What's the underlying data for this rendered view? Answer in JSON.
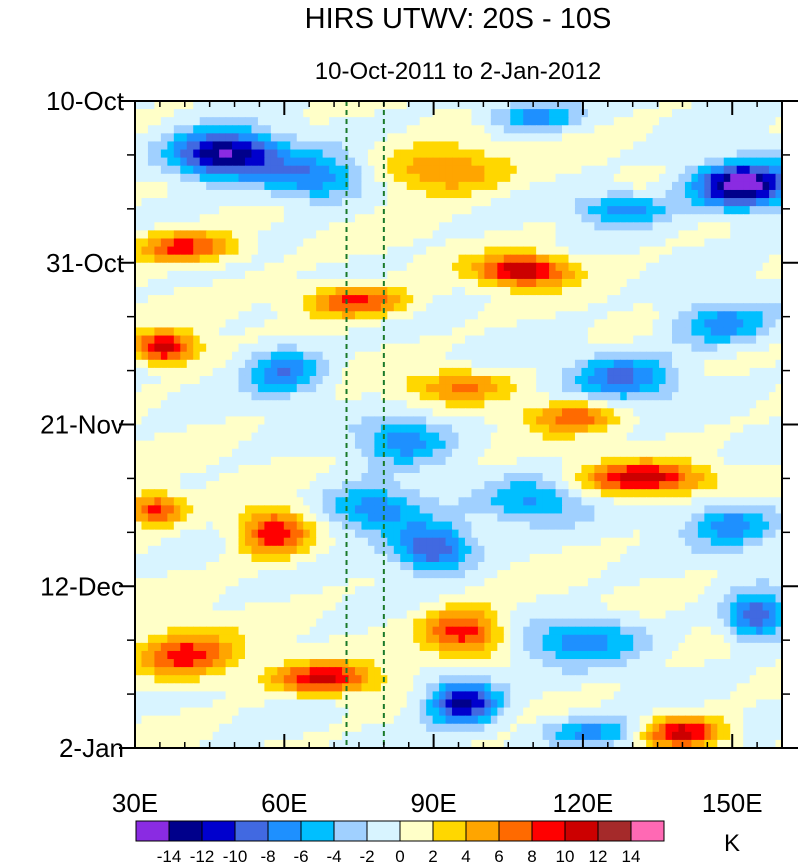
{
  "chart_data": {
    "type": "heatmap",
    "title": "HIRS UTWV: 20S - 10S",
    "subtitle": "10-Oct-2011 to 2-Jan-2012",
    "xlabel": "",
    "ylabel": "",
    "x_range": [
      30,
      160
    ],
    "x_ticks": [
      {
        "value": 30,
        "label": "30E"
      },
      {
        "value": 60,
        "label": "60E"
      },
      {
        "value": 90,
        "label": "90E"
      },
      {
        "value": 120,
        "label": "120E"
      },
      {
        "value": 150,
        "label": "150E"
      }
    ],
    "y_range_days": [
      0,
      84
    ],
    "y_ticks": [
      {
        "day": 0,
        "label": "10-Oct"
      },
      {
        "day": 21,
        "label": "31-Oct"
      },
      {
        "day": 42,
        "label": "21-Nov"
      },
      {
        "day": 63,
        "label": "12-Dec"
      },
      {
        "day": 84,
        "label": "2-Jan"
      }
    ],
    "reference_lines_lon": [
      72.5,
      80
    ],
    "reference_line_color": "#1a7a2a",
    "colorbar": {
      "unit": "K",
      "labels": [
        "-14",
        "-12",
        "-10",
        "-8",
        "-6",
        "-4",
        "-2",
        "0",
        "2",
        "4",
        "6",
        "8",
        "10",
        "12",
        "14"
      ],
      "colors": [
        "#8a2be2",
        "#00008b",
        "#0000cd",
        "#4169e1",
        "#1e90ff",
        "#00bfff",
        "#a0d0ff",
        "#d8f4ff",
        "#ffffc8",
        "#ffd700",
        "#ffa500",
        "#ff6a00",
        "#ff0000",
        "#cc0000",
        "#a52a2a",
        "#ff69b4"
      ]
    },
    "anomaly_blobs": [
      {
        "lon": 48,
        "day": 7,
        "amp": -15,
        "wlon": 11,
        "wday": 3
      },
      {
        "lon": 66,
        "day": 10,
        "amp": -8,
        "wlon": 10,
        "wday": 3
      },
      {
        "lon": 110,
        "day": 2,
        "amp": -7,
        "wlon": 9,
        "wday": 2
      },
      {
        "lon": 128,
        "day": 14,
        "amp": -7,
        "wlon": 9,
        "wday": 2
      },
      {
        "lon": 152,
        "day": 11,
        "amp": -16,
        "wlon": 10,
        "wday": 3
      },
      {
        "lon": 40,
        "day": 19,
        "amp": 9,
        "wlon": 10,
        "wday": 2
      },
      {
        "lon": 108,
        "day": 22,
        "amp": 12,
        "wlon": 9,
        "wday": 2
      },
      {
        "lon": 92,
        "day": 9,
        "amp": 7,
        "wlon": 12,
        "wday": 3
      },
      {
        "lon": 74,
        "day": 26,
        "amp": 9,
        "wlon": 10,
        "wday": 2
      },
      {
        "lon": 36,
        "day": 32,
        "amp": 12,
        "wlon": 6,
        "wday": 2
      },
      {
        "lon": 148,
        "day": 29,
        "amp": -7,
        "wlon": 10,
        "wday": 3
      },
      {
        "lon": 60,
        "day": 35,
        "amp": -8,
        "wlon": 8,
        "wday": 3
      },
      {
        "lon": 128,
        "day": 36,
        "amp": -8,
        "wlon": 10,
        "wday": 3
      },
      {
        "lon": 95,
        "day": 37,
        "amp": 6,
        "wlon": 10,
        "wday": 2
      },
      {
        "lon": 84,
        "day": 44,
        "amp": -7,
        "wlon": 9,
        "wday": 3
      },
      {
        "lon": 118,
        "day": 41,
        "amp": 7,
        "wlon": 9,
        "wday": 2
      },
      {
        "lon": 34,
        "day": 53,
        "amp": 9,
        "wlon": 6,
        "wday": 2
      },
      {
        "lon": 58,
        "day": 56,
        "amp": 10,
        "wlon": 7,
        "wday": 3
      },
      {
        "lon": 90,
        "day": 58,
        "amp": -11,
        "wlon": 8,
        "wday": 3
      },
      {
        "lon": 78,
        "day": 53,
        "amp": -8,
        "wlon": 10,
        "wday": 3
      },
      {
        "lon": 132,
        "day": 49,
        "amp": 11,
        "wlon": 12,
        "wday": 2
      },
      {
        "lon": 110,
        "day": 52,
        "amp": -6,
        "wlon": 10,
        "wday": 3
      },
      {
        "lon": 150,
        "day": 55,
        "amp": -7,
        "wlon": 9,
        "wday": 3
      },
      {
        "lon": 40,
        "day": 72,
        "amp": 9,
        "wlon": 10,
        "wday": 3
      },
      {
        "lon": 68,
        "day": 75,
        "amp": 10,
        "wlon": 10,
        "wday": 2
      },
      {
        "lon": 96,
        "day": 69,
        "amp": 10,
        "wlon": 8,
        "wday": 3
      },
      {
        "lon": 96,
        "day": 78,
        "amp": -13,
        "wlon": 7,
        "wday": 3
      },
      {
        "lon": 120,
        "day": 70,
        "amp": -7,
        "wlon": 12,
        "wday": 3
      },
      {
        "lon": 155,
        "day": 67,
        "amp": -10,
        "wlon": 6,
        "wday": 3
      },
      {
        "lon": 140,
        "day": 82,
        "amp": 11,
        "wlon": 8,
        "wday": 2
      },
      {
        "lon": 122,
        "day": 82,
        "amp": -7,
        "wlon": 10,
        "wday": 2
      }
    ]
  }
}
